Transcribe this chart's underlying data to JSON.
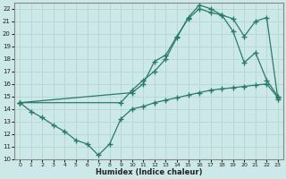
{
  "title": "",
  "xlabel": "Humidex (Indice chaleur)",
  "ylabel": "",
  "bg_color": "#cce8e8",
  "grid_color": "#b8d8d8",
  "line_color": "#2a7a6a",
  "xlim": [
    -0.5,
    23.5
  ],
  "ylim": [
    10,
    22.5
  ],
  "xticks": [
    0,
    1,
    2,
    3,
    4,
    5,
    6,
    7,
    8,
    9,
    10,
    11,
    12,
    13,
    14,
    15,
    16,
    17,
    18,
    19,
    20,
    21,
    22,
    23
  ],
  "yticks": [
    10,
    11,
    12,
    13,
    14,
    15,
    16,
    17,
    18,
    19,
    20,
    21,
    22
  ],
  "line1_x": [
    0,
    1,
    2,
    3,
    4,
    5,
    6,
    7,
    8,
    9,
    10,
    11,
    12,
    13,
    14,
    15,
    16,
    17,
    18,
    19,
    20,
    21,
    22,
    23
  ],
  "line1_y": [
    14.5,
    13.8,
    13.3,
    12.7,
    12.2,
    11.5,
    11.2,
    10.3,
    11.2,
    13.2,
    14.0,
    14.2,
    14.5,
    14.7,
    14.9,
    15.1,
    15.3,
    15.5,
    15.6,
    15.7,
    15.8,
    15.9,
    16.0,
    14.9
  ],
  "line2_x": [
    0,
    10,
    11,
    12,
    13,
    14,
    15,
    16,
    17,
    18,
    19,
    20,
    21,
    22,
    23
  ],
  "line2_y": [
    14.5,
    15.3,
    16.0,
    17.8,
    18.3,
    19.8,
    21.2,
    22.0,
    21.7,
    21.5,
    21.2,
    19.8,
    21.0,
    21.3,
    14.8
  ],
  "line3_x": [
    0,
    9,
    10,
    11,
    12,
    13,
    14,
    15,
    16,
    17,
    18,
    19,
    20,
    21,
    22,
    23
  ],
  "line3_y": [
    14.5,
    14.5,
    15.5,
    16.3,
    17.0,
    18.0,
    19.7,
    21.3,
    22.3,
    22.0,
    21.5,
    20.2,
    17.7,
    18.5,
    16.3,
    15.0
  ]
}
